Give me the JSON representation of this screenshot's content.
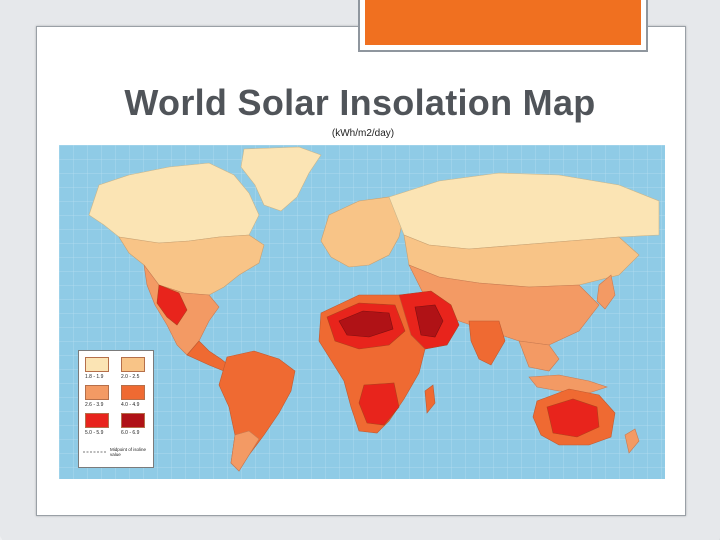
{
  "slide": {
    "title": "World Solar Insolation Map",
    "subtitle": "(kWh/m2/day)"
  },
  "colors": {
    "ocean": "#8fcbe6",
    "accent_tab": "#f07020",
    "band_1_8_1_9": "#fbe4b4",
    "band_2_0_2_5": "#f8c487",
    "band_2_6_3_9": "#f39a64",
    "band_4_0_4_9": "#ef6a32",
    "band_5_0_5_9": "#e8241c",
    "band_6_0_6_9": "#b01216"
  },
  "legend": {
    "items": [
      {
        "label": "1.8 - 1.9",
        "color": "#fbe4b4"
      },
      {
        "label": "2.0 - 2.5",
        "color": "#f8c487"
      },
      {
        "label": "2.6 - 3.9",
        "color": "#f39a64"
      },
      {
        "label": "4.0 - 4.9",
        "color": "#ef6a32"
      },
      {
        "label": "5.0 - 5.9",
        "color": "#e8241c"
      },
      {
        "label": "6.0 - 6.9",
        "color": "#b01216"
      }
    ],
    "midpoint_text": "Midpoint of isoline value"
  }
}
